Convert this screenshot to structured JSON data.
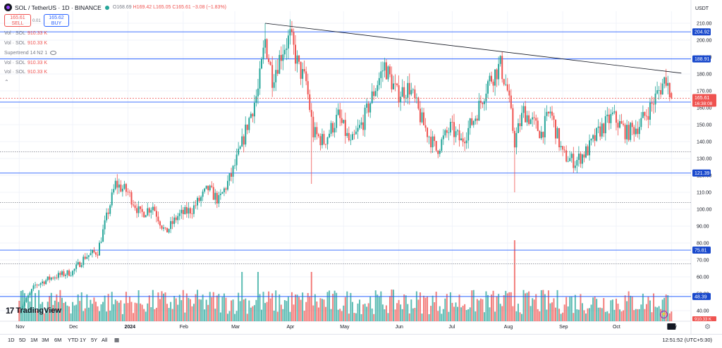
{
  "header": {
    "symbol": "SOL / TetherUS · 1D · BINANCE",
    "open": "O168.69",
    "high": "H169.42",
    "low": "L165.05",
    "close": "C165.61",
    "change": "−3.08 (−1.83%)"
  },
  "trade": {
    "sell_price": "165.61",
    "sell_label": "SELL",
    "buy_price": "165.62",
    "buy_label": "BUY",
    "spread": "0.01"
  },
  "indicators": [
    {
      "name": "Vol · SOL",
      "value": "910.33 K"
    },
    {
      "name": "Vol · SOL",
      "value": "910.33 K"
    },
    {
      "name": "Supertrend 14 N2 1",
      "value": ""
    },
    {
      "name": "Vol · SOL",
      "value": "910.33 K"
    },
    {
      "name": "Vol · SOL",
      "value": "910.33 K"
    }
  ],
  "currency": "USDT",
  "brand": "TradingView",
  "timeframes": [
    "1D",
    "5D",
    "1M",
    "3M",
    "6M",
    "YTD",
    "1Y",
    "5Y",
    "All"
  ],
  "clock": "12:51:52 (UTC+5:30)",
  "colors": {
    "up": "#26a69a",
    "down": "#ef5350",
    "level_line": "#2962ff",
    "trendline": "#131722",
    "dotted": "#787b86"
  },
  "chart_data": {
    "type": "candlestick",
    "title": "SOL / TetherUS · 1D · BINANCE",
    "ylabel": "USDT",
    "ylim": [
      40,
      215
    ],
    "y_ticks": [
      40,
      50,
      60,
      70,
      80,
      90,
      100,
      110,
      120,
      130,
      140,
      150,
      160,
      170,
      180,
      190,
      200,
      210
    ],
    "x_ticks": [
      "Nov",
      "Dec",
      "2024",
      "Feb",
      "Mar",
      "Apr",
      "May",
      "Jun",
      "Jul",
      "Aug",
      "Sep",
      "Oct",
      "Nov"
    ],
    "horizontal_levels": [
      {
        "value": 204.92,
        "label": "204.92",
        "style": "solid"
      },
      {
        "value": 188.91,
        "label": "188.91",
        "style": "solid"
      },
      {
        "value": 163.36,
        "label": "163.36",
        "style": "solid"
      },
      {
        "value": 121.39,
        "label": "121.39",
        "style": "solid"
      },
      {
        "value": 75.81,
        "label": "75.81",
        "style": "solid"
      },
      {
        "value": 48.39,
        "label": "48.39",
        "style": "solid"
      }
    ],
    "dotted_levels": [
      134,
      104,
      67.7
    ],
    "last_price": {
      "value": 165.61,
      "label": "165.61",
      "countdown": "16:38:08"
    },
    "trendline": {
      "start": {
        "x": "2024-03-18",
        "y": 210
      },
      "end": {
        "x": "2024-11-01",
        "y": 180.5
      }
    },
    "volume_last": "910.33 K",
    "price_path": [
      {
        "x": "2023-11-01",
        "y": 40
      },
      {
        "x": "2023-11-10",
        "y": 55
      },
      {
        "x": "2023-11-20",
        "y": 60
      },
      {
        "x": "2023-12-01",
        "y": 63
      },
      {
        "x": "2023-12-08",
        "y": 72
      },
      {
        "x": "2023-12-15",
        "y": 75
      },
      {
        "x": "2023-12-20",
        "y": 95
      },
      {
        "x": "2023-12-25",
        "y": 115
      },
      {
        "x": "2024-01-01",
        "y": 110
      },
      {
        "x": "2024-01-08",
        "y": 97
      },
      {
        "x": "2024-01-15",
        "y": 102
      },
      {
        "x": "2024-01-22",
        "y": 86
      },
      {
        "x": "2024-01-29",
        "y": 96
      },
      {
        "x": "2024-02-06",
        "y": 100
      },
      {
        "x": "2024-02-15",
        "y": 112
      },
      {
        "x": "2024-02-21",
        "y": 105
      },
      {
        "x": "2024-02-28",
        "y": 120
      },
      {
        "x": "2024-03-04",
        "y": 135
      },
      {
        "x": "2024-03-08",
        "y": 150
      },
      {
        "x": "2024-03-14",
        "y": 170
      },
      {
        "x": "2024-03-18",
        "y": 200
      },
      {
        "x": "2024-03-22",
        "y": 178
      },
      {
        "x": "2024-03-28",
        "y": 195
      },
      {
        "x": "2024-04-01",
        "y": 202
      },
      {
        "x": "2024-04-06",
        "y": 183
      },
      {
        "x": "2024-04-10",
        "y": 175
      },
      {
        "x": "2024-04-14",
        "y": 145
      },
      {
        "x": "2024-04-20",
        "y": 140
      },
      {
        "x": "2024-04-28",
        "y": 155
      },
      {
        "x": "2024-05-05",
        "y": 138
      },
      {
        "x": "2024-05-12",
        "y": 152
      },
      {
        "x": "2024-05-20",
        "y": 175
      },
      {
        "x": "2024-05-24",
        "y": 185
      },
      {
        "x": "2024-05-31",
        "y": 168
      },
      {
        "x": "2024-06-07",
        "y": 172
      },
      {
        "x": "2024-06-14",
        "y": 152
      },
      {
        "x": "2024-06-22",
        "y": 135
      },
      {
        "x": "2024-06-30",
        "y": 148
      },
      {
        "x": "2024-07-06",
        "y": 140
      },
      {
        "x": "2024-07-14",
        "y": 155
      },
      {
        "x": "2024-07-21",
        "y": 175
      },
      {
        "x": "2024-07-28",
        "y": 185
      },
      {
        "x": "2024-08-01",
        "y": 170
      },
      {
        "x": "2024-08-05",
        "y": 140
      },
      {
        "x": "2024-08-10",
        "y": 158
      },
      {
        "x": "2024-08-20",
        "y": 145
      },
      {
        "x": "2024-08-25",
        "y": 158
      },
      {
        "x": "2024-09-01",
        "y": 132
      },
      {
        "x": "2024-09-08",
        "y": 128
      },
      {
        "x": "2024-09-15",
        "y": 135
      },
      {
        "x": "2024-09-22",
        "y": 147
      },
      {
        "x": "2024-09-29",
        "y": 155
      },
      {
        "x": "2024-10-07",
        "y": 145
      },
      {
        "x": "2024-10-14",
        "y": 150
      },
      {
        "x": "2024-10-20",
        "y": 160
      },
      {
        "x": "2024-10-25",
        "y": 170
      },
      {
        "x": "2024-10-29",
        "y": 178
      },
      {
        "x": "2024-11-01",
        "y": 165.61
      }
    ]
  }
}
